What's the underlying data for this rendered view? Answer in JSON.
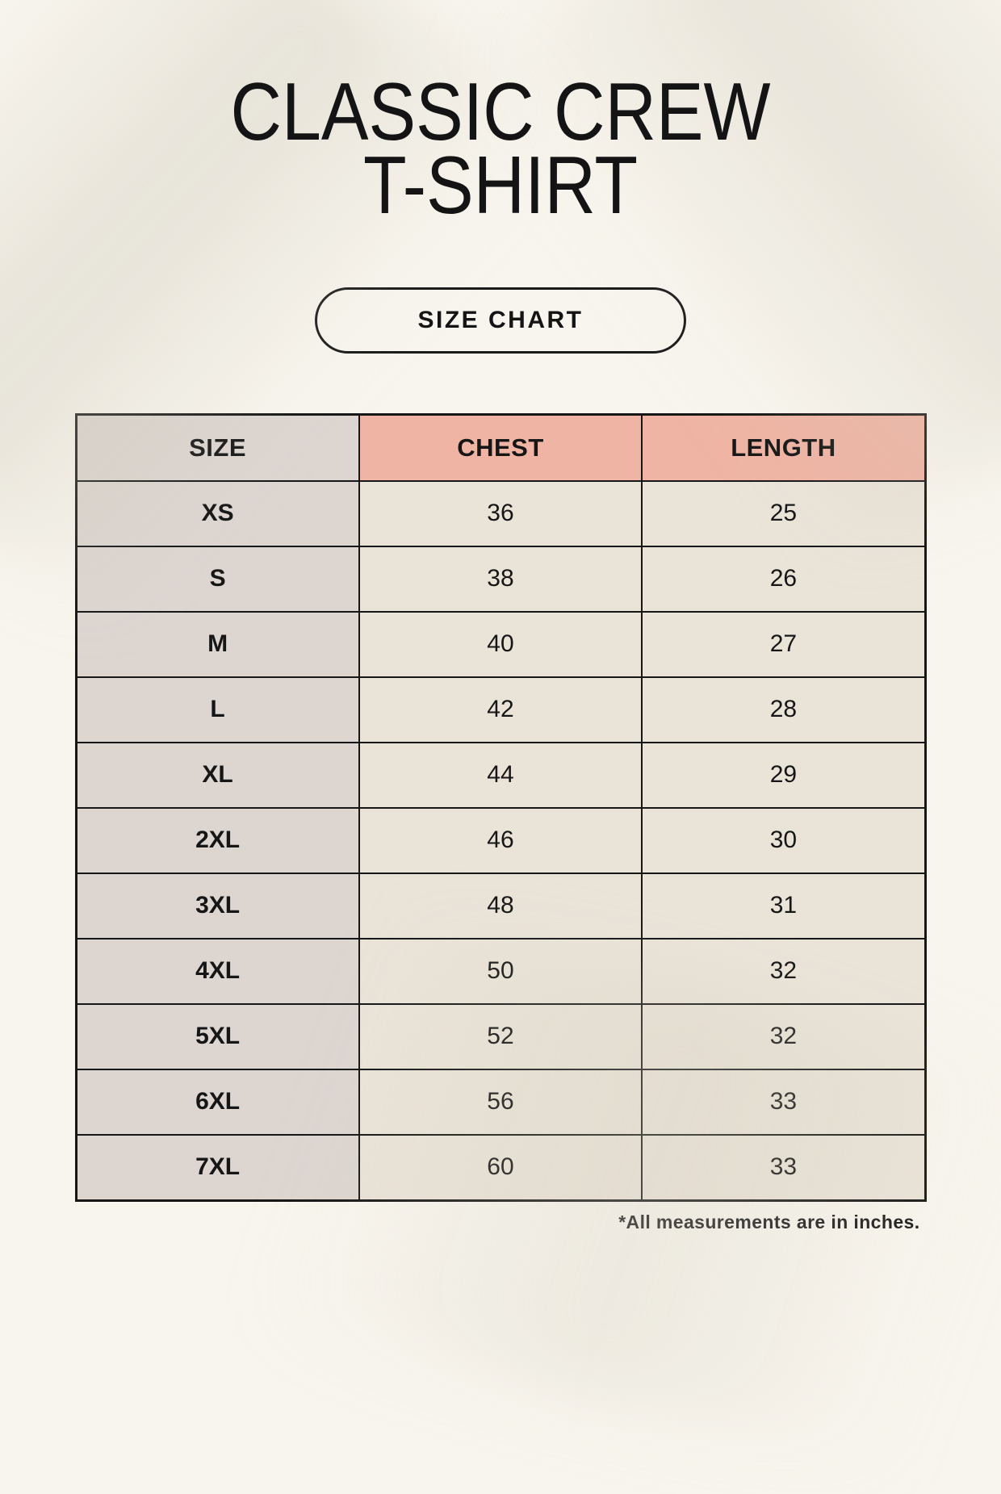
{
  "page": {
    "title_line1": "CLASSIC CREW",
    "title_line2": "T-SHIRT",
    "badge_label": "SIZE CHART",
    "footnote": "*All measurements are in inches."
  },
  "colors": {
    "background": "#f8f5ee",
    "header_pink": "#efb4a4",
    "size_column_gray": "#dcd5d0",
    "value_cell_cream": "#eae3d8",
    "border": "#161616",
    "text": "#141414"
  },
  "chart_data": {
    "type": "table",
    "title": "CLASSIC CREW T-SHIRT",
    "subtitle": "SIZE CHART",
    "columns": [
      "SIZE",
      "CHEST",
      "LENGTH"
    ],
    "rows": [
      [
        "XS",
        "36",
        "25"
      ],
      [
        "S",
        "38",
        "26"
      ],
      [
        "M",
        "40",
        "27"
      ],
      [
        "L",
        "42",
        "28"
      ],
      [
        "XL",
        "44",
        "29"
      ],
      [
        "2XL",
        "46",
        "30"
      ],
      [
        "3XL",
        "48",
        "31"
      ],
      [
        "4XL",
        "50",
        "32"
      ],
      [
        "5XL",
        "52",
        "32"
      ],
      [
        "6XL",
        "56",
        "33"
      ],
      [
        "7XL",
        "60",
        "33"
      ]
    ],
    "footnote": "*All measurements are in inches.",
    "units": "inches"
  }
}
